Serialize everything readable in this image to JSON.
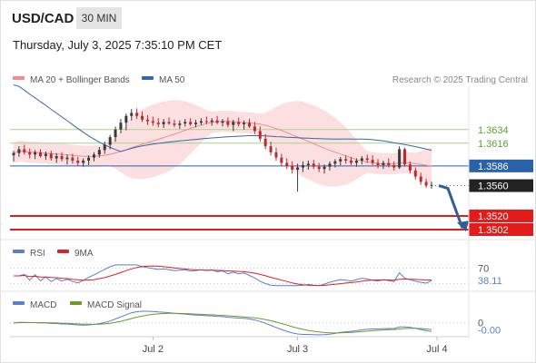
{
  "header": {
    "symbol": "USD/CAD",
    "timeframe": "30 MIN",
    "datetime": "Thursday, July 3, 2025 7:35:10 PM CET"
  },
  "legend": {
    "bollinger": "MA 20 + Bollinger Bands",
    "ma50": "MA 50",
    "credit": "Research © 2025 Trading Central",
    "rsi": "RSI",
    "rsi_ma": "9MA",
    "macd": "MACD",
    "macd_signal": "MACD Signal"
  },
  "colors": {
    "up_candle": "#3a3a3a",
    "down_candle": "#c0282d",
    "bollinger_fill": "#fbd9da",
    "ma20": "#f08c8f",
    "ma50": "#3568a8",
    "support_resistance": "#a9d18e",
    "pivot": "#2962a8",
    "target": "#e21b1b",
    "last_price": "#222222",
    "rsi_line": "#5a7fd1",
    "rsi_ma_line": "#d8232a",
    "macd_line": "#5a7fd1",
    "macd_signal_line": "#6a9a2a",
    "forecast_arrow": "#2f5f96"
  },
  "chart_data": [
    {
      "type": "candlestick",
      "series": [
        {
          "name": "USD/CAD",
          "x": [
            "Jul 2",
            "Jul 3",
            "Jul 4"
          ]
        },
        {
          "name": "MA 20 + Bollinger Bands"
        },
        {
          "name": "MA 50"
        }
      ],
      "price_range": [
        1.349,
        1.369
      ],
      "levels": [
        {
          "label": "1.3634",
          "value": 1.3634,
          "style": "resistance"
        },
        {
          "label": "1.3616",
          "value": 1.3616,
          "style": "resistance"
        },
        {
          "label": "1.3586",
          "value": 1.3586,
          "style": "pivot"
        },
        {
          "label": "1.3560",
          "value": 1.356,
          "style": "last"
        },
        {
          "label": "1.3520",
          "value": 1.352,
          "style": "target"
        },
        {
          "label": "1.3502",
          "value": 1.3502,
          "style": "target"
        }
      ],
      "candles": [
        [
          1.36,
          1.3606,
          1.3592,
          1.3603
        ],
        [
          1.3603,
          1.3612,
          1.3598,
          1.3608
        ],
        [
          1.3608,
          1.3614,
          1.3601,
          1.3604
        ],
        [
          1.3604,
          1.3609,
          1.3596,
          1.3601
        ],
        [
          1.3601,
          1.3607,
          1.3595,
          1.3604
        ],
        [
          1.3604,
          1.3608,
          1.3597,
          1.3599
        ],
        [
          1.3599,
          1.3605,
          1.3594,
          1.3602
        ],
        [
          1.3602,
          1.3606,
          1.3593,
          1.3596
        ],
        [
          1.3596,
          1.3603,
          1.359,
          1.3599
        ],
        [
          1.3599,
          1.3604,
          1.3592,
          1.3595
        ],
        [
          1.3595,
          1.3601,
          1.3588,
          1.3597
        ],
        [
          1.3597,
          1.3602,
          1.3589,
          1.3593
        ],
        [
          1.3593,
          1.3598,
          1.3586,
          1.359
        ],
        [
          1.359,
          1.3596,
          1.3585,
          1.3593
        ],
        [
          1.3593,
          1.36,
          1.3587,
          1.3597
        ],
        [
          1.3597,
          1.3604,
          1.3592,
          1.3601
        ],
        [
          1.3601,
          1.3611,
          1.3597,
          1.3607
        ],
        [
          1.3607,
          1.3618,
          1.3602,
          1.3614
        ],
        [
          1.3614,
          1.3627,
          1.3608,
          1.3624
        ],
        [
          1.3624,
          1.3638,
          1.3618,
          1.3634
        ],
        [
          1.3634,
          1.3648,
          1.3629,
          1.3643
        ],
        [
          1.3643,
          1.3655,
          1.3633,
          1.3652
        ],
        [
          1.3652,
          1.3661,
          1.3646,
          1.3656
        ],
        [
          1.3656,
          1.3662,
          1.3648,
          1.3652
        ],
        [
          1.3652,
          1.3658,
          1.3644,
          1.3647
        ],
        [
          1.3647,
          1.3653,
          1.364,
          1.3645
        ],
        [
          1.3645,
          1.3651,
          1.3639,
          1.3643
        ],
        [
          1.3643,
          1.3649,
          1.3637,
          1.3641
        ],
        [
          1.3641,
          1.3648,
          1.3636,
          1.3644
        ],
        [
          1.3644,
          1.365,
          1.364,
          1.3642
        ],
        [
          1.3642,
          1.3647,
          1.3637,
          1.364
        ],
        [
          1.364,
          1.3646,
          1.3635,
          1.3642
        ],
        [
          1.3642,
          1.3648,
          1.3638,
          1.3644
        ],
        [
          1.3644,
          1.3649,
          1.3639,
          1.3641
        ],
        [
          1.3641,
          1.3647,
          1.3637,
          1.3643
        ],
        [
          1.3643,
          1.3649,
          1.364,
          1.3645
        ],
        [
          1.3645,
          1.3651,
          1.3641,
          1.3644
        ],
        [
          1.3644,
          1.3649,
          1.3639,
          1.3646
        ],
        [
          1.3646,
          1.3652,
          1.3641,
          1.3643
        ],
        [
          1.3643,
          1.3648,
          1.3638,
          1.3645
        ],
        [
          1.3645,
          1.365,
          1.3637,
          1.364
        ],
        [
          1.364,
          1.3647,
          1.3632,
          1.3644
        ],
        [
          1.3644,
          1.365,
          1.3638,
          1.3641
        ],
        [
          1.3641,
          1.3646,
          1.3634,
          1.3643
        ],
        [
          1.3643,
          1.3648,
          1.3636,
          1.3638
        ],
        [
          1.3638,
          1.3644,
          1.3628,
          1.3632
        ],
        [
          1.3632,
          1.3638,
          1.3618,
          1.3622
        ],
        [
          1.3622,
          1.3628,
          1.3608,
          1.3612
        ],
        [
          1.3612,
          1.3618,
          1.36,
          1.3604
        ],
        [
          1.3604,
          1.361,
          1.3593,
          1.3597
        ],
        [
          1.3597,
          1.3602,
          1.3586,
          1.359
        ],
        [
          1.359,
          1.3596,
          1.3582,
          1.3586
        ],
        [
          1.3586,
          1.3592,
          1.3576,
          1.3581
        ],
        [
          1.3581,
          1.3589,
          1.3552,
          1.3584
        ],
        [
          1.3584,
          1.3592,
          1.3578,
          1.3587
        ],
        [
          1.3587,
          1.3593,
          1.3581,
          1.3589
        ],
        [
          1.3589,
          1.3594,
          1.3582,
          1.3585
        ],
        [
          1.3585,
          1.359,
          1.3578,
          1.3582
        ],
        [
          1.3582,
          1.3588,
          1.3576,
          1.3585
        ],
        [
          1.3585,
          1.3592,
          1.358,
          1.3589
        ],
        [
          1.3589,
          1.3595,
          1.3584,
          1.3592
        ],
        [
          1.3592,
          1.3598,
          1.3587,
          1.3595
        ],
        [
          1.3595,
          1.36,
          1.3589,
          1.3593
        ],
        [
          1.3593,
          1.3598,
          1.3587,
          1.359
        ],
        [
          1.359,
          1.3596,
          1.3585,
          1.3593
        ],
        [
          1.3593,
          1.3599,
          1.3588,
          1.3596
        ],
        [
          1.3596,
          1.3601,
          1.359,
          1.3594
        ],
        [
          1.3594,
          1.36,
          1.3587,
          1.359
        ],
        [
          1.359,
          1.3595,
          1.3583,
          1.3587
        ],
        [
          1.3587,
          1.3593,
          1.3582,
          1.359
        ],
        [
          1.359,
          1.3596,
          1.3584,
          1.3587
        ],
        [
          1.3587,
          1.3592,
          1.358,
          1.3584
        ],
        [
          1.3584,
          1.3612,
          1.3582,
          1.3608
        ],
        [
          1.3608,
          1.361,
          1.3585,
          1.3588
        ],
        [
          1.3588,
          1.3592,
          1.3576,
          1.358
        ],
        [
          1.358,
          1.3584,
          1.3568,
          1.3572
        ],
        [
          1.3572,
          1.3577,
          1.3561,
          1.3565
        ],
        [
          1.3565,
          1.3569,
          1.3557,
          1.356
        ],
        [
          1.356,
          1.3565,
          1.3556,
          1.3561
        ]
      ]
    },
    {
      "type": "line",
      "title": "RSI",
      "series": [
        {
          "name": "RSI"
        },
        {
          "name": "9MA"
        }
      ],
      "y_ticks": [
        70
      ],
      "last_value_label": "38.11",
      "last_value": 38.11
    },
    {
      "type": "line",
      "title": "MACD",
      "series": [
        {
          "name": "MACD"
        },
        {
          "name": "MACD Signal"
        }
      ],
      "y_ticks": [
        0
      ],
      "last_value_label": "-0.00",
      "last_value": -0.0
    }
  ],
  "axis": {
    "x_labels": [
      "Jul 2",
      "Jul 3",
      "Jul 4"
    ]
  }
}
